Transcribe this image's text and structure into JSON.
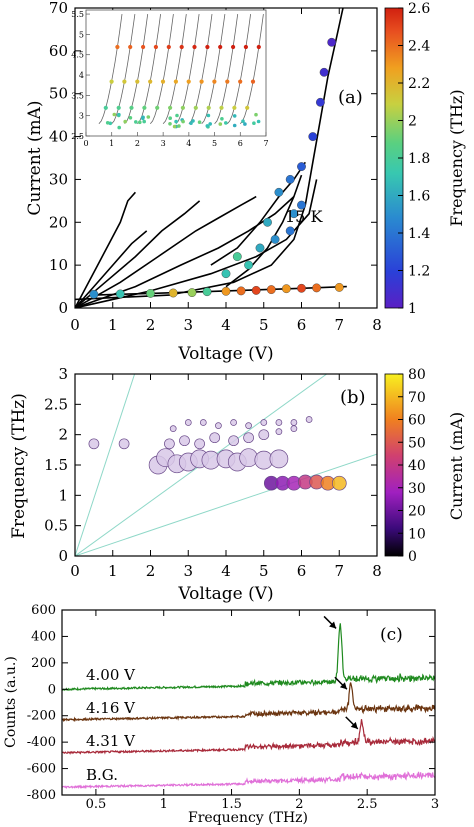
{
  "panel_a": {
    "label": "(a)",
    "annotation": "15 K",
    "xlabel": "Voltage (V)",
    "ylabel": "Current (mA)",
    "colorbar_label": "Frequency (THz)",
    "xticks": [
      "0",
      "1",
      "2",
      "3",
      "4",
      "5",
      "6",
      "7",
      "8"
    ],
    "yticks": [
      "0",
      "10",
      "20",
      "30",
      "40",
      "50",
      "60",
      "70"
    ],
    "cbticks": [
      "1",
      "1.2",
      "1.4",
      "1.6",
      "1.8",
      "2",
      "2.2",
      "2.4",
      "2.6"
    ],
    "inset_xticks": [
      "0",
      "1",
      "2",
      "3",
      "4",
      "5",
      "6",
      "7"
    ],
    "inset_yticks": [
      "2.5",
      "3",
      "3.5",
      "4",
      "4.5",
      "5",
      "5.5"
    ]
  },
  "panel_b": {
    "label": "(b)",
    "xlabel": "Voltage (V)",
    "ylabel": "Frequency (THz)",
    "colorbar_label": "Current (mA)",
    "xticks": [
      "0",
      "1",
      "2",
      "3",
      "4",
      "5",
      "6",
      "7",
      "8"
    ],
    "yticks": [
      "0",
      "0.5",
      "1",
      "1.5",
      "2",
      "2.5",
      "3"
    ],
    "cbticks": [
      "0",
      "10",
      "20",
      "30",
      "40",
      "50",
      "60",
      "70",
      "80"
    ]
  },
  "panel_c": {
    "label": "(c)",
    "xlabel": "Frequency (THz)",
    "ylabel": "Counts (a.u.)",
    "xticks": [
      "0.5",
      "1",
      "1.5",
      "2",
      "2.5",
      "3"
    ],
    "yticks": [
      "600",
      "400",
      "200",
      "0",
      "-200",
      "-400",
      "-600",
      "-800"
    ],
    "trace_labels": [
      "4.00 V",
      "4.16 V",
      "4.31 V",
      "B.G."
    ]
  },
  "colors": {
    "trace_400": "#1f8a1f",
    "trace_416": "#6b3510",
    "trace_431": "#a82a3a",
    "trace_bg": "#e070d8",
    "guide_line": "#8fd8c8"
  },
  "chart_data": [
    {
      "type": "scatter",
      "panel": "a",
      "xlim": [
        0,
        8
      ],
      "ylim": [
        0,
        70
      ],
      "color_scale": "frequency_THz",
      "color_range": [
        1,
        2.6
      ],
      "series": [
        {
          "values": [
            [
              0.5,
              3.2,
              1.5
            ],
            [
              1.2,
              3.3,
              1.7
            ],
            [
              2.0,
              3.4,
              1.9
            ],
            [
              2.6,
              3.5,
              2.2
            ],
            [
              3.1,
              3.6,
              2.0
            ],
            [
              3.5,
              3.8,
              1.8
            ],
            [
              4.0,
              3.9,
              2.3
            ],
            [
              4.4,
              4.0,
              2.4
            ],
            [
              4.8,
              4.1,
              2.5
            ],
            [
              5.2,
              4.3,
              2.4
            ],
            [
              5.6,
              4.5,
              2.3
            ],
            [
              6.0,
              4.6,
              2.5
            ],
            [
              6.4,
              4.7,
              2.4
            ],
            [
              7.0,
              4.8,
              2.3
            ],
            [
              4.0,
              8,
              1.7
            ],
            [
              4.6,
              10,
              1.7
            ],
            [
              4.3,
              12,
              1.8
            ],
            [
              4.9,
              14,
              1.6
            ],
            [
              5.3,
              16,
              1.5
            ],
            [
              5.7,
              18,
              1.4
            ],
            [
              5.1,
              20,
              1.6
            ],
            [
              5.8,
              22,
              1.5
            ],
            [
              6.0,
              24,
              1.4
            ],
            [
              5.4,
              27,
              1.5
            ],
            [
              5.7,
              30,
              1.4
            ],
            [
              6.0,
              33,
              1.3
            ],
            [
              6.3,
              40,
              1.2
            ],
            [
              6.5,
              48,
              1.15
            ],
            [
              6.6,
              55,
              1.1
            ],
            [
              6.8,
              62,
              1.05
            ]
          ]
        }
      ]
    },
    {
      "type": "scatter",
      "panel": "b",
      "xlim": [
        0,
        8
      ],
      "ylim": [
        0,
        3
      ],
      "color_scale": "current_mA",
      "color_range": [
        0,
        80
      ],
      "series": [
        {
          "values": [
            [
              0.5,
              1.85,
              3
            ],
            [
              1.3,
              1.85,
              4
            ],
            [
              2.2,
              1.5,
              4
            ],
            [
              2.4,
              1.62,
              5
            ],
            [
              2.7,
              1.52,
              5
            ],
            [
              3.0,
              1.55,
              4
            ],
            [
              3.3,
              1.6,
              4
            ],
            [
              3.6,
              1.58,
              5
            ],
            [
              4.0,
              1.6,
              5
            ],
            [
              4.3,
              1.55,
              6
            ],
            [
              4.6,
              1.62,
              5
            ],
            [
              5.0,
              1.58,
              6
            ],
            [
              5.4,
              1.6,
              7
            ],
            [
              2.5,
              1.85,
              4
            ],
            [
              2.9,
              1.9,
              4
            ],
            [
              3.3,
              1.85,
              5
            ],
            [
              3.7,
              1.95,
              4
            ],
            [
              4.2,
              1.9,
              5
            ],
            [
              4.6,
              1.95,
              5
            ],
            [
              5.0,
              2.0,
              6
            ],
            [
              5.4,
              2.05,
              6
            ],
            [
              5.8,
              2.1,
              7
            ],
            [
              2.6,
              2.1,
              3
            ],
            [
              3.0,
              2.2,
              3
            ],
            [
              3.4,
              2.2,
              3
            ],
            [
              3.8,
              2.15,
              3
            ],
            [
              4.2,
              2.2,
              3
            ],
            [
              4.6,
              2.15,
              4
            ],
            [
              5.0,
              2.2,
              4
            ],
            [
              5.4,
              2.2,
              4
            ],
            [
              5.8,
              2.2,
              5
            ],
            [
              6.2,
              2.25,
              5
            ],
            [
              5.2,
              1.2,
              20
            ],
            [
              5.5,
              1.2,
              25
            ],
            [
              5.8,
              1.2,
              30
            ],
            [
              6.1,
              1.22,
              40
            ],
            [
              6.4,
              1.22,
              50
            ],
            [
              6.7,
              1.2,
              60
            ],
            [
              7.0,
              1.2,
              70
            ]
          ]
        }
      ]
    },
    {
      "type": "line",
      "panel": "c",
      "xlim": [
        0.25,
        3.0
      ],
      "ylim": [
        -800,
        600
      ],
      "series": [
        {
          "name": "4.00 V",
          "baseline": 0,
          "peak": [
            2.3,
            430
          ]
        },
        {
          "name": "4.16 V",
          "baseline": -230,
          "peak": [
            2.38,
            -30
          ]
        },
        {
          "name": "4.31 V",
          "baseline": -480,
          "peak": [
            2.46,
            -330
          ]
        },
        {
          "name": "B.G.",
          "baseline": -740,
          "peak": null
        }
      ]
    }
  ]
}
